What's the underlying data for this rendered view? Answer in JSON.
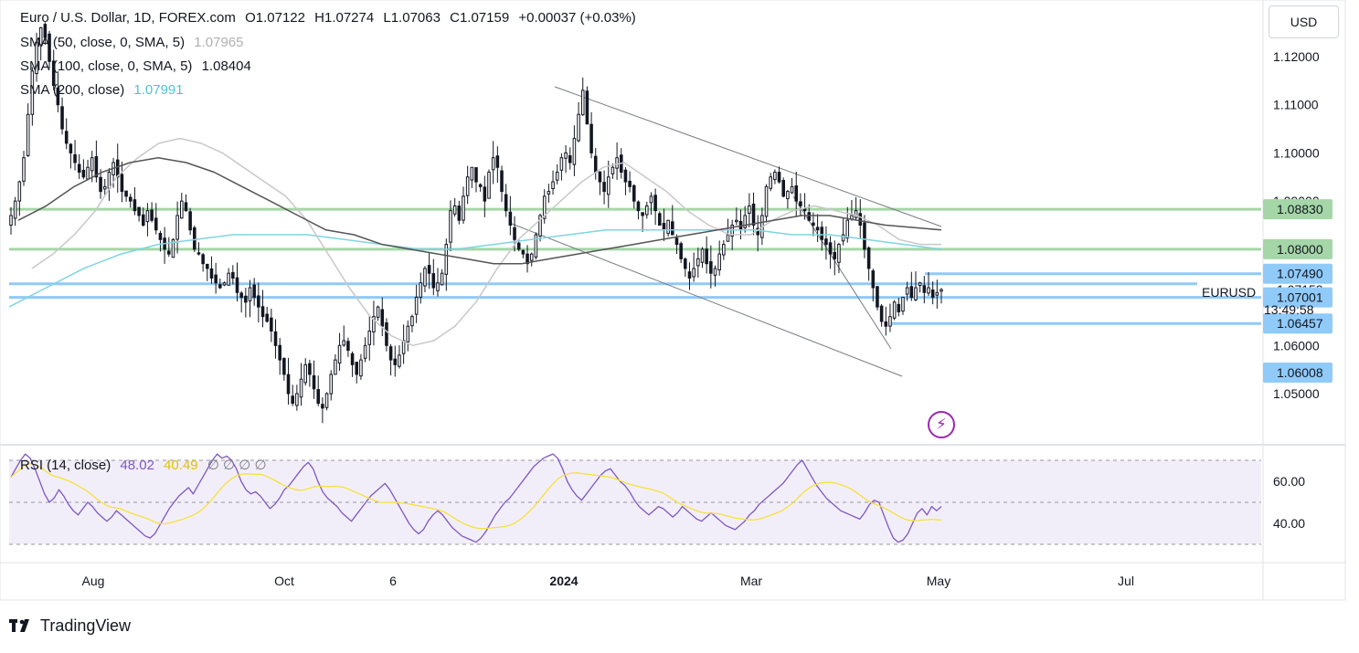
{
  "header": {
    "symbol": "Euro / U.S. Dollar, 1D, FOREX.com",
    "open": "O1.07122",
    "high": "H1.07274",
    "low": "L1.07063",
    "close": "C1.07159",
    "change": "+0.00037 (+0.03%)"
  },
  "indicators": [
    {
      "label": "SMA (50, close, 0, SMA, 5)",
      "value": "1.07965",
      "color": "#c8c8c8"
    },
    {
      "label": "SMA (100, close, 0, SMA, 5)",
      "value": "1.08404",
      "color": "#555555"
    },
    {
      "label": "SMA (200, close)",
      "value": "1.07991",
      "color": "#7fd4e0"
    }
  ],
  "rsi": {
    "label": "RSI (14, close)",
    "value": "48.02",
    "ma_value": "40.49",
    "extras": "∅ ∅ ∅ ∅",
    "line_color": "#7e57c2",
    "ma_color": "#f5e13d"
  },
  "currency": "USD",
  "symbol_tag": "EURUSD",
  "countdown": "13:49:58",
  "brand": "TradingView",
  "colors": {
    "up": "#26a69a",
    "down": "#ef5350",
    "candle": "#131722",
    "support_green": "#a5d6a7",
    "level_blue": "#90caf9",
    "channel": "#787b86"
  },
  "chart_data": {
    "type": "candlestick",
    "x_ticks": [
      "Aug",
      "Oct",
      "6",
      "2024",
      "Mar",
      "May",
      "Jul"
    ],
    "y_ticks": [
      1.05,
      1.06,
      1.07,
      1.08,
      1.09,
      1.1,
      1.11,
      1.12
    ],
    "ylim": [
      1.042,
      1.129
    ],
    "levels_green": [
      1.0883,
      1.08
    ],
    "levels_blue": [
      1.0749,
      1.07,
      1.06457
    ],
    "price_labels": [
      {
        "value": "1.08830",
        "kind": "green"
      },
      {
        "value": "1.08000",
        "kind": "green"
      },
      {
        "value": "1.07490",
        "kind": "blue"
      },
      {
        "value": "1.07159",
        "kind": "plain"
      },
      {
        "value": "1.07001",
        "kind": "blue"
      },
      {
        "value": "1.06457",
        "kind": "blue"
      },
      {
        "value": "1.06008",
        "kind": "blue"
      }
    ],
    "close_series": [
      1.087,
      1.09,
      1.094,
      1.099,
      1.108,
      1.117,
      1.123,
      1.126,
      1.124,
      1.119,
      1.114,
      1.11,
      1.105,
      1.102,
      1.1,
      1.098,
      1.096,
      1.095,
      1.097,
      1.099,
      1.095,
      1.092,
      1.093,
      1.096,
      1.098,
      1.095,
      1.092,
      1.091,
      1.09,
      1.088,
      1.087,
      1.085,
      1.088,
      1.086,
      1.084,
      1.082,
      1.08,
      1.079,
      1.082,
      1.087,
      1.09,
      1.088,
      1.084,
      1.08,
      1.079,
      1.077,
      1.076,
      1.074,
      1.073,
      1.072,
      1.073,
      1.075,
      1.074,
      1.071,
      1.07,
      1.069,
      1.072,
      1.07,
      1.068,
      1.066,
      1.065,
      1.063,
      1.06,
      1.057,
      1.054,
      1.05,
      1.048,
      1.05,
      1.053,
      1.056,
      1.054,
      1.051,
      1.048,
      1.047,
      1.05,
      1.054,
      1.057,
      1.06,
      1.061,
      1.059,
      1.056,
      1.054,
      1.057,
      1.06,
      1.063,
      1.066,
      1.068,
      1.064,
      1.06,
      1.057,
      1.056,
      1.058,
      1.061,
      1.064,
      1.066,
      1.07,
      1.073,
      1.076,
      1.075,
      1.072,
      1.073,
      1.075,
      1.081,
      1.088,
      1.089,
      1.086,
      1.091,
      1.095,
      1.097,
      1.094,
      1.093,
      1.09,
      1.096,
      1.099,
      1.097,
      1.092,
      1.088,
      1.085,
      1.082,
      1.08,
      1.079,
      1.077,
      1.079,
      1.083,
      1.087,
      1.091,
      1.092,
      1.094,
      1.096,
      1.099,
      1.1,
      1.098,
      1.103,
      1.108,
      1.113,
      1.106,
      1.1,
      1.096,
      1.094,
      1.092,
      1.095,
      1.097,
      1.099,
      1.096,
      1.094,
      1.093,
      1.09,
      1.088,
      1.087,
      1.089,
      1.091,
      1.088,
      1.085,
      1.084,
      1.086,
      1.083,
      1.081,
      1.078,
      1.076,
      1.074,
      1.076,
      1.078,
      1.08,
      1.077,
      1.075,
      1.076,
      1.079,
      1.081,
      1.083,
      1.085,
      1.086,
      1.084,
      1.087,
      1.089,
      1.085,
      1.083,
      1.087,
      1.093,
      1.095,
      1.096,
      1.094,
      1.091,
      1.092,
      1.093,
      1.09,
      1.089,
      1.088,
      1.086,
      1.085,
      1.084,
      1.082,
      1.081,
      1.079,
      1.078,
      1.081,
      1.083,
      1.086,
      1.087,
      1.088,
      1.085,
      1.08,
      1.076,
      1.072,
      1.068,
      1.065,
      1.064,
      1.066,
      1.069,
      1.067,
      1.07,
      1.072,
      1.07,
      1.072,
      1.073,
      1.071,
      1.072,
      1.07,
      1.071,
      1.0716
    ],
    "sma50": [
      1.076,
      1.079,
      1.083,
      1.088,
      1.095,
      1.099,
      1.102,
      1.103,
      1.102,
      1.1,
      1.097,
      1.094,
      1.091,
      1.086,
      1.079,
      1.072,
      1.066,
      1.062,
      1.06,
      1.061,
      1.064,
      1.069,
      1.076,
      1.082,
      1.086,
      1.09,
      1.094,
      1.097,
      1.098,
      1.095,
      1.092,
      1.088,
      1.085,
      1.083,
      1.083,
      1.086,
      1.088,
      1.089,
      1.088,
      1.087,
      1.085,
      1.082,
      1.081,
      1.081
    ],
    "sma100": [
      1.086,
      1.089,
      1.093,
      1.096,
      1.098,
      1.099,
      1.098,
      1.096,
      1.093,
      1.09,
      1.087,
      1.084,
      1.083,
      1.081,
      1.08,
      1.079,
      1.078,
      1.077,
      1.077,
      1.078,
      1.079,
      1.08,
      1.081,
      1.082,
      1.083,
      1.084,
      1.085,
      1.086,
      1.087,
      1.087,
      1.086,
      1.085,
      1.0845,
      1.084
    ],
    "sma200": [
      1.068,
      1.072,
      1.076,
      1.079,
      1.081,
      1.082,
      1.083,
      1.083,
      1.083,
      1.082,
      1.081,
      1.08,
      1.08,
      1.081,
      1.082,
      1.083,
      1.084,
      1.084,
      1.084,
      1.084,
      1.084,
      1.083,
      1.083,
      1.082,
      1.081,
      1.08
    ],
    "rsi_series": [
      62,
      66,
      70,
      73,
      71,
      66,
      60,
      54,
      50,
      52,
      56,
      53,
      49,
      46,
      44,
      47,
      50,
      48,
      45,
      43,
      41,
      43,
      46,
      44,
      42,
      40,
      38,
      36,
      34,
      33,
      35,
      39,
      43,
      47,
      50,
      53,
      55,
      57,
      54,
      58,
      62,
      66,
      70,
      73,
      71,
      72,
      70,
      66,
      60,
      56,
      54,
      55,
      53,
      50,
      47,
      49,
      52,
      56,
      58,
      61,
      64,
      67,
      69,
      66,
      60,
      55,
      52,
      50,
      48,
      45,
      43,
      41,
      44,
      47,
      50,
      53,
      55,
      57,
      59,
      56,
      52,
      48,
      44,
      40,
      37,
      35,
      37,
      41,
      44,
      46,
      44,
      41,
      38,
      36,
      34,
      33,
      32,
      31,
      33,
      36,
      40,
      44,
      47,
      50,
      52,
      55,
      58,
      61,
      64,
      67,
      69,
      71,
      72,
      73,
      71,
      66,
      60,
      56,
      53,
      51,
      54,
      57,
      60,
      63,
      65,
      66,
      63,
      60,
      58,
      55,
      51,
      48,
      46,
      44,
      46,
      48,
      47,
      45,
      43,
      45,
      48,
      46,
      44,
      42,
      41,
      43,
      45,
      43,
      41,
      39,
      38,
      37,
      39,
      41,
      44,
      46,
      49,
      51,
      53,
      55,
      57,
      59,
      62,
      65,
      68,
      70,
      66,
      62,
      58,
      55,
      52,
      50,
      48,
      46,
      45,
      44,
      43,
      42,
      45,
      49,
      51,
      50,
      44,
      38,
      33,
      31,
      32,
      35,
      40,
      45,
      47,
      44,
      48,
      46,
      48
    ]
  }
}
